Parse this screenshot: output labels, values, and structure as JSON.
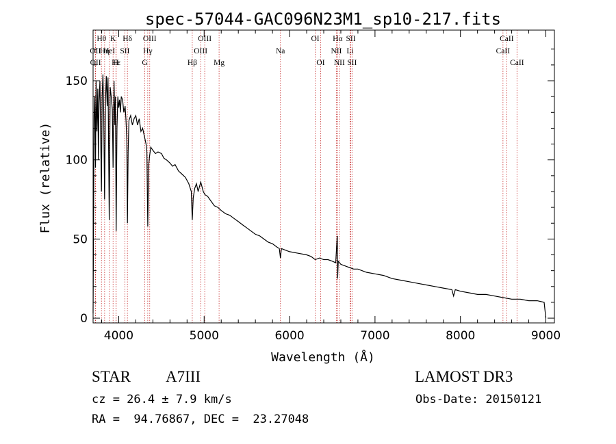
{
  "chart_data": {
    "type": "line",
    "title": "spec-57044-GAC096N23M1_sp10-217.fits",
    "xlabel": "Wavelength (Å)",
    "ylabel": "Flux (relative)",
    "xlim": [
      3700,
      9100
    ],
    "ylim": [
      -3,
      182
    ],
    "xticks": [
      4000,
      5000,
      6000,
      7000,
      8000,
      9000
    ],
    "xtick_labels": [
      "4000",
      "5000",
      "6000",
      "7000",
      "8000",
      "9000"
    ],
    "yticks": [
      0,
      50,
      100,
      150
    ],
    "ytick_labels": [
      "0",
      "50",
      "100",
      "150"
    ],
    "grid": false,
    "series": [
      {
        "name": "spectrum",
        "points": [
          [
            3700,
            3
          ],
          [
            3705,
            55
          ],
          [
            3712,
            128
          ],
          [
            3720,
            140
          ],
          [
            3728,
            95
          ],
          [
            3735,
            150
          ],
          [
            3745,
            118
          ],
          [
            3755,
            145
          ],
          [
            3762,
            100
          ],
          [
            3770,
            136
          ],
          [
            3780,
            150
          ],
          [
            3790,
            112
          ],
          [
            3798,
            80
          ],
          [
            3806,
            140
          ],
          [
            3815,
            154
          ],
          [
            3825,
            128
          ],
          [
            3835,
            75
          ],
          [
            3845,
            138
          ],
          [
            3855,
            153
          ],
          [
            3865,
            134
          ],
          [
            3875,
            152
          ],
          [
            3889,
            62
          ],
          [
            3900,
            146
          ],
          [
            3912,
            140
          ],
          [
            3925,
            132
          ],
          [
            3934,
            95
          ],
          [
            3945,
            150
          ],
          [
            3955,
            122
          ],
          [
            3962,
            140
          ],
          [
            3970,
            55
          ],
          [
            3980,
            120
          ],
          [
            3990,
            140
          ],
          [
            4000,
            133
          ],
          [
            4010,
            138
          ],
          [
            4020,
            130
          ],
          [
            4030,
            140
          ],
          [
            4045,
            138
          ],
          [
            4060,
            130
          ],
          [
            4075,
            134
          ],
          [
            4085,
            125
          ],
          [
            4095,
            112
          ],
          [
            4102,
            60
          ],
          [
            4110,
            105
          ],
          [
            4120,
            125
          ],
          [
            4140,
            128
          ],
          [
            4160,
            122
          ],
          [
            4180,
            126
          ],
          [
            4200,
            128
          ],
          [
            4220,
            122
          ],
          [
            4240,
            126
          ],
          [
            4260,
            118
          ],
          [
            4280,
            120
          ],
          [
            4300,
            115
          ],
          [
            4320,
            110
          ],
          [
            4330,
            105
          ],
          [
            4340,
            58
          ],
          [
            4350,
            96
          ],
          [
            4360,
            102
          ],
          [
            4375,
            108
          ],
          [
            4400,
            106
          ],
          [
            4430,
            104
          ],
          [
            4460,
            105
          ],
          [
            4500,
            104
          ],
          [
            4530,
            101
          ],
          [
            4560,
            100
          ],
          [
            4600,
            98
          ],
          [
            4630,
            96
          ],
          [
            4660,
            97
          ],
          [
            4700,
            93
          ],
          [
            4740,
            91
          ],
          [
            4780,
            89
          ],
          [
            4820,
            85
          ],
          [
            4850,
            80
          ],
          [
            4861,
            62
          ],
          [
            4872,
            76
          ],
          [
            4890,
            82
          ],
          [
            4910,
            85
          ],
          [
            4930,
            80
          ],
          [
            4960,
            86
          ],
          [
            4990,
            80
          ],
          [
            5010,
            78
          ],
          [
            5040,
            77
          ],
          [
            5080,
            74
          ],
          [
            5120,
            71
          ],
          [
            5160,
            70
          ],
          [
            5200,
            68
          ],
          [
            5250,
            66
          ],
          [
            5300,
            65
          ],
          [
            5350,
            63
          ],
          [
            5400,
            61
          ],
          [
            5450,
            59
          ],
          [
            5500,
            57
          ],
          [
            5550,
            55
          ],
          [
            5600,
            53
          ],
          [
            5650,
            52
          ],
          [
            5700,
            50
          ],
          [
            5750,
            48
          ],
          [
            5800,
            47
          ],
          [
            5850,
            45
          ],
          [
            5880,
            44
          ],
          [
            5893,
            38
          ],
          [
            5905,
            44
          ],
          [
            5950,
            43
          ],
          [
            6000,
            42
          ],
          [
            6100,
            41
          ],
          [
            6200,
            40
          ],
          [
            6250,
            39
          ],
          [
            6300,
            37
          ],
          [
            6350,
            38
          ],
          [
            6400,
            37
          ],
          [
            6450,
            37
          ],
          [
            6500,
            36
          ],
          [
            6540,
            35
          ],
          [
            6558,
            52
          ],
          [
            6563,
            25
          ],
          [
            6570,
            36
          ],
          [
            6600,
            34
          ],
          [
            6650,
            33
          ],
          [
            6700,
            32
          ],
          [
            6750,
            31
          ],
          [
            6800,
            31
          ],
          [
            6900,
            29
          ],
          [
            7000,
            28
          ],
          [
            7100,
            27
          ],
          [
            7200,
            25
          ],
          [
            7300,
            24
          ],
          [
            7400,
            23
          ],
          [
            7500,
            22
          ],
          [
            7600,
            21
          ],
          [
            7700,
            20
          ],
          [
            7800,
            19
          ],
          [
            7900,
            18
          ],
          [
            7920,
            14
          ],
          [
            7940,
            18
          ],
          [
            8000,
            17
          ],
          [
            8100,
            16
          ],
          [
            8200,
            15
          ],
          [
            8300,
            15
          ],
          [
            8400,
            14
          ],
          [
            8500,
            13
          ],
          [
            8600,
            12
          ],
          [
            8700,
            12
          ],
          [
            8800,
            11
          ],
          [
            8900,
            11
          ],
          [
            8980,
            10
          ],
          [
            9000,
            0
          ]
        ]
      }
    ],
    "lines": [
      {
        "label": "Hθ",
        "x": 3798,
        "row": 1
      },
      {
        "label": "OII",
        "x": 3727,
        "row": 2
      },
      {
        "label": "OII",
        "x": 3729,
        "row": 3
      },
      {
        "label": "Hη",
        "x": 3835,
        "row": 2
      },
      {
        "label": "Hε",
        "x": 3970,
        "row": 3
      },
      {
        "label": "K",
        "x": 3934,
        "row": 1
      },
      {
        "label": "H",
        "x": 3968,
        "row": 3
      },
      {
        "label": "HeI",
        "x": 3889,
        "row": 2
      },
      {
        "label": "SII",
        "x": 4072,
        "row": 2
      },
      {
        "label": "Hδ",
        "x": 4102,
        "row": 1
      },
      {
        "label": "OIII",
        "x": 4363,
        "row": 1
      },
      {
        "label": "Hγ",
        "x": 4340,
        "row": 2
      },
      {
        "label": "G",
        "x": 4305,
        "row": 3
      },
      {
        "label": "Hβ",
        "x": 4861,
        "row": 3
      },
      {
        "label": "OIII",
        "x": 5007,
        "row": 1
      },
      {
        "label": "OIII",
        "x": 4959,
        "row": 2
      },
      {
        "label": "Mg",
        "x": 5175,
        "row": 3
      },
      {
        "label": "Na",
        "x": 5893,
        "row": 2
      },
      {
        "label": "OI",
        "x": 6300,
        "row": 1
      },
      {
        "label": "OI",
        "x": 6364,
        "row": 3
      },
      {
        "label": "Hα",
        "x": 6563,
        "row": 1
      },
      {
        "label": "NII",
        "x": 6548,
        "row": 2
      },
      {
        "label": "NII",
        "x": 6583,
        "row": 3
      },
      {
        "label": "SII",
        "x": 6717,
        "row": 1
      },
      {
        "label": "Li",
        "x": 6708,
        "row": 2
      },
      {
        "label": "SII",
        "x": 6731,
        "row": 3
      },
      {
        "label": "CaII",
        "x": 8542,
        "row": 1
      },
      {
        "label": "CaII",
        "x": 8498,
        "row": 2
      },
      {
        "label": "CaII",
        "x": 8662,
        "row": 3
      }
    ]
  },
  "footer": {
    "object_class": "STAR",
    "subclass": "A7III",
    "survey": "LAMOST DR3",
    "redshift": "cz = 26.4 ± 7.9 km/s",
    "obs_date": "Obs-Date: 20150121",
    "coords": "RA =  94.76867, DEC =  23.27048"
  }
}
